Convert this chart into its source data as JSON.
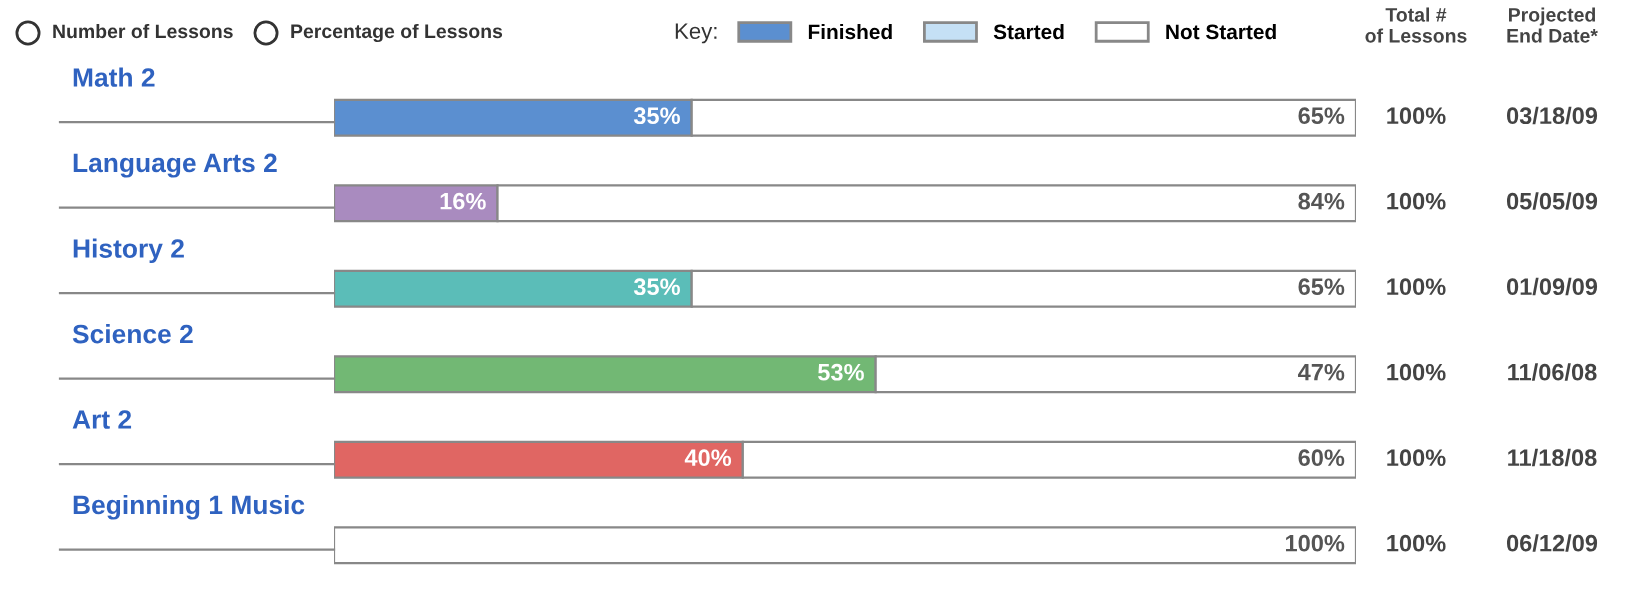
{
  "chart_data": {
    "type": "bar",
    "orientation": "horizontal",
    "stacked": true,
    "categories": [
      "Math 2",
      "Language Arts 2",
      "History 2",
      "Science 2",
      "Art 2",
      "Beginning 1 Music"
    ],
    "series": [
      {
        "name": "Finished",
        "color": "#5b8fd0",
        "colors": [
          "#5b8fd0",
          "#a98bbf",
          "#5bbdb8",
          "#72b874",
          "#e06663",
          "#5b8fd0"
        ],
        "values": [
          35,
          16,
          35,
          53,
          40,
          0
        ],
        "value_labels": [
          "35%",
          "16%",
          "35%",
          "53%",
          "40%",
          null
        ]
      },
      {
        "name": "Started",
        "color": "#c5e0f5",
        "values": [
          0,
          0,
          0,
          0,
          0,
          0
        ]
      },
      {
        "name": "Not Started",
        "color": "#ffffff",
        "values": [
          65,
          84,
          65,
          47,
          60,
          100
        ],
        "value_labels": [
          "65%",
          "84%",
          "65%",
          "47%",
          "60%",
          "100%"
        ]
      }
    ],
    "xlim": [
      0,
      100
    ],
    "legend": "top",
    "legend_title": "Key:",
    "totals": [
      "100%",
      "100%",
      "100%",
      "100%",
      "100%",
      "100%"
    ],
    "annotations": [
      "03/18/09",
      "05/05/09",
      "01/09/09",
      "11/06/08",
      "11/18/08",
      "06/12/09",
      "Total #\nof Lessons",
      "Projected\nEnd Date*",
      "Number of Lessons",
      "Percentage of Lessons"
    ]
  }
}
